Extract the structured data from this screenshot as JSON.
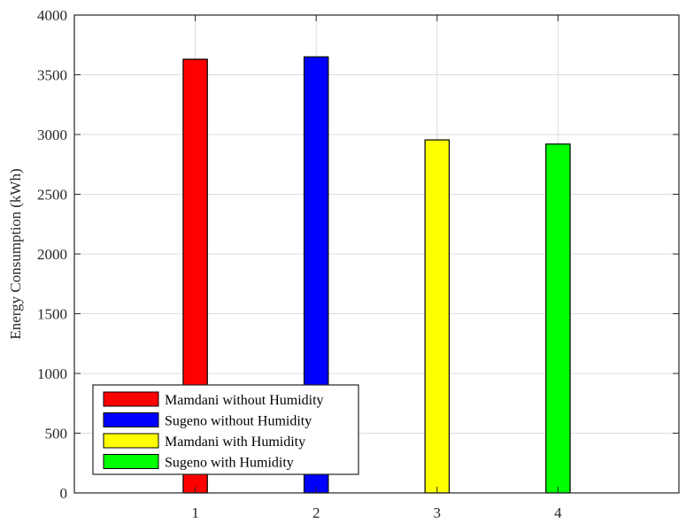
{
  "chart_data": {
    "type": "bar",
    "categories": [
      "1",
      "2",
      "3",
      "4"
    ],
    "ylabel": "Energy Consumption (kWh)",
    "xlabel": "",
    "title": "",
    "ylim": [
      0,
      4000
    ],
    "xlim": [
      0,
      5
    ],
    "yticks": [
      0,
      500,
      1000,
      1500,
      2000,
      2500,
      3000,
      3500,
      4000
    ],
    "grid": true,
    "legend_position": "bottom-left",
    "series": [
      {
        "name": "Mamdani without Humidity",
        "x": 1,
        "value": 3630,
        "color": "#ff0000"
      },
      {
        "name": "Sugeno without Humidity",
        "x": 2,
        "value": 3650,
        "color": "#0000ff"
      },
      {
        "name": "Mamdani with Humidity",
        "x": 3,
        "value": 2955,
        "color": "#ffff00"
      },
      {
        "name": "Sugeno with Humidity",
        "x": 4,
        "value": 2920,
        "color": "#00ff00"
      }
    ]
  }
}
